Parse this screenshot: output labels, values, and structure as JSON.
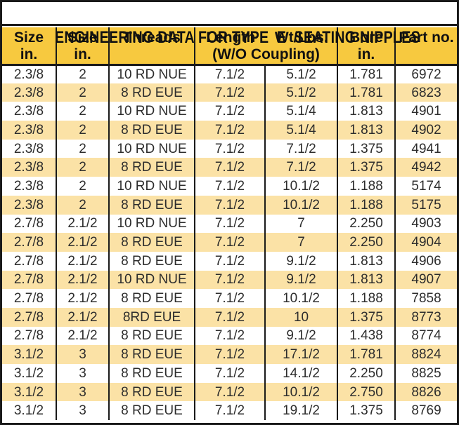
{
  "title": "ENGINEERING DATA FOR TYPE  E  SEATING NIPPLES",
  "colors": {
    "header_bg": "#F7C93F",
    "stripe_bg": "#FBE2A6",
    "border": "#1a1a1a",
    "title_text": "#111111",
    "data_text": "#2d2d2d"
  },
  "table": {
    "header": {
      "size1": {
        "line1": "Size",
        "line2": "in."
      },
      "size2": {
        "line1": "Size",
        "line2": "in."
      },
      "threads": {
        "line1": "Threads"
      },
      "length_wt": {
        "left": "Length",
        "right": "Wt/Lbs.",
        "line2": "(W/O Coupling)"
      },
      "bore": {
        "line1": "Bore",
        "line2": "in."
      },
      "part": {
        "line1": "Part no."
      }
    },
    "rows": [
      [
        "2.3/8",
        "2",
        "10 RD NUE",
        "7.1/2",
        "5.1/2",
        "1.781",
        "6972"
      ],
      [
        "2.3/8",
        "2",
        "8 RD EUE",
        "7.1/2",
        "5.1/2",
        "1.781",
        "6823"
      ],
      [
        "2.3/8",
        "2",
        "10 RD NUE",
        "7.1/2",
        "5.1/4",
        "1.813",
        "4901"
      ],
      [
        "2.3/8",
        "2",
        "8 RD EUE",
        "7.1/2",
        "5.1/4",
        "1.813",
        "4902"
      ],
      [
        "2.3/8",
        "2",
        "10 RD NUE",
        "7.1/2",
        "7.1/2",
        "1.375",
        "4941"
      ],
      [
        "2.3/8",
        "2",
        "8 RD EUE",
        "7.1/2",
        "7.1/2",
        "1.375",
        "4942"
      ],
      [
        "2.3/8",
        "2",
        "10 RD NUE",
        "7.1/2",
        "10.1/2",
        "1.188",
        "5174"
      ],
      [
        "2.3/8",
        "2",
        "8 RD EUE",
        "7.1/2",
        "10.1/2",
        "1.188",
        "5175"
      ],
      [
        "2.7/8",
        "2.1/2",
        "10 RD NUE",
        "7.1/2",
        "7",
        "2.250",
        "4903"
      ],
      [
        "2.7/8",
        "2.1/2",
        "8 RD EUE",
        "7.1/2",
        "7",
        "2.250",
        "4904"
      ],
      [
        "2.7/8",
        "2.1/2",
        "8 RD EUE",
        "7.1/2",
        "9.1/2",
        "1.813",
        "4906"
      ],
      [
        "2.7/8",
        "2.1/2",
        "10 RD NUE",
        "7.1/2",
        "9.1/2",
        "1.813",
        "4907"
      ],
      [
        "2.7/8",
        "2.1/2",
        "8 RD EUE",
        "7.1/2",
        "10.1/2",
        "1.188",
        "7858"
      ],
      [
        "2.7/8",
        "2.1/2",
        "8RD EUE",
        "7.1/2",
        "10",
        "1.375",
        "8773"
      ],
      [
        "2.7/8",
        "2.1/2",
        "8 RD EUE",
        "7.1/2",
        "9.1/2",
        "1.438",
        "8774"
      ],
      [
        "3.1/2",
        "3",
        "8 RD EUE",
        "7.1/2",
        "17.1/2",
        "1.781",
        "8824"
      ],
      [
        "3.1/2",
        "3",
        "8 RD EUE",
        "7.1/2",
        "14.1/2",
        "2.250",
        "8825"
      ],
      [
        "3.1/2",
        "3",
        "8 RD EUE",
        "7.1/2",
        "10.1/2",
        "2.750",
        "8826"
      ],
      [
        "3.1/2",
        "3",
        "8 RD EUE",
        "7.1/2",
        "19.1/2",
        "1.375",
        "8769"
      ]
    ]
  }
}
